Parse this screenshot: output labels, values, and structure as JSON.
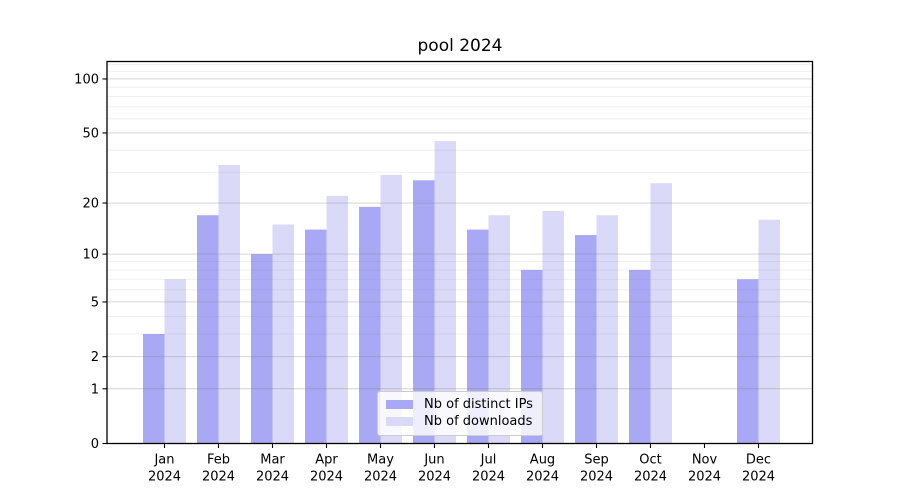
{
  "chart_data": {
    "type": "bar",
    "title": "pool 2024",
    "categories": [
      "Jan",
      "Feb",
      "Mar",
      "Apr",
      "May",
      "Jun",
      "Jul",
      "Aug",
      "Sep",
      "Oct",
      "Nov",
      "Dec"
    ],
    "x_tick_second_line": "2024",
    "series": [
      {
        "name": "Nb of distinct IPs",
        "key": "distinct-ips",
        "color": "#a8a8f5",
        "values": [
          3,
          17,
          10,
          14,
          19,
          27,
          14,
          8,
          13,
          8,
          0,
          7
        ]
      },
      {
        "name": "Nb of downloads",
        "key": "downloads",
        "color": "#dadaf8",
        "values": [
          7,
          33,
          15,
          22,
          29,
          45,
          17,
          18,
          17,
          26,
          0,
          16
        ]
      }
    ],
    "y_axis": {
      "scale": "symlog-log1p",
      "min": 0,
      "max": 125,
      "major_ticks": [
        0,
        1,
        2,
        5,
        10,
        20,
        50,
        100
      ],
      "minor_ticks": [
        3,
        4,
        6,
        7,
        8,
        9,
        30,
        40,
        60,
        70,
        80,
        90,
        110,
        120
      ]
    },
    "legend": {
      "position": "lower-center"
    },
    "grid": true,
    "colors": {
      "background": "#ffffff",
      "axis": "#000000",
      "text": "#000000",
      "major_grid": "rgba(120,120,120,0.35)",
      "minor_grid": "rgba(120,120,120,0.14)"
    }
  }
}
